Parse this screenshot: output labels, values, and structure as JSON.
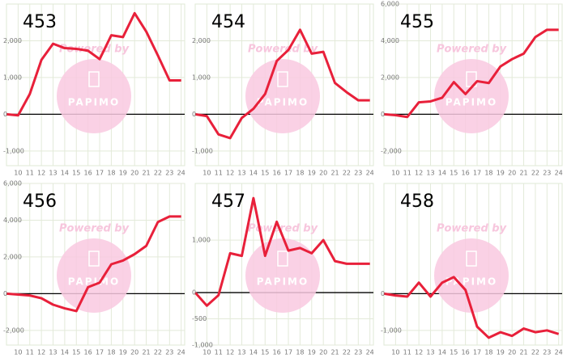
{
  "watermark": {
    "text": "Powered by",
    "logo": "PAPIMO"
  },
  "chart_data": [
    {
      "type": "line",
      "title": "453",
      "x": [
        9,
        10,
        11,
        12,
        13,
        14,
        15,
        16,
        17,
        18,
        19,
        20,
        21,
        22,
        23,
        24
      ],
      "xticks": [
        10,
        11,
        12,
        13,
        14,
        15,
        16,
        17,
        18,
        19,
        20,
        21,
        22,
        23,
        24
      ],
      "xlim": [
        9,
        24.3
      ],
      "series": [
        {
          "name": "453",
          "color": "#e8203a",
          "values": [
            0,
            -30,
            550,
            1480,
            1920,
            1800,
            1780,
            1730,
            1500,
            2150,
            2100,
            2750,
            2250,
            1600,
            920,
            920
          ]
        }
      ],
      "ylim": [
        -1400,
        3000
      ],
      "yticks": [
        {
          "value": 2000,
          "label": "2,000"
        },
        {
          "value": 1000,
          "label": "1,000"
        },
        0,
        {
          "value": -1000,
          "label": "-1,000"
        }
      ],
      "grid": true
    },
    {
      "type": "line",
      "title": "454",
      "x": [
        9,
        10,
        11,
        12,
        13,
        14,
        15,
        16,
        17,
        18,
        19,
        20,
        21,
        22,
        23,
        24
      ],
      "xticks": [
        10,
        11,
        12,
        13,
        14,
        15,
        16,
        17,
        18,
        19,
        20,
        21,
        22,
        23,
        24
      ],
      "xlim": [
        9,
        24.3
      ],
      "series": [
        {
          "name": "454",
          "color": "#e8203a",
          "values": [
            0,
            -50,
            -550,
            -650,
            -100,
            150,
            550,
            1450,
            1750,
            2300,
            1650,
            1700,
            850,
            600,
            380,
            380
          ]
        }
      ],
      "ylim": [
        -1400,
        3000
      ],
      "yticks": [
        {
          "value": 2000,
          "label": "2,000"
        },
        {
          "value": 1000,
          "label": "1,000"
        },
        0,
        {
          "value": -1000,
          "label": "-1,000"
        }
      ],
      "grid": true
    },
    {
      "type": "line",
      "title": "455",
      "x": [
        9,
        10,
        11,
        12,
        13,
        14,
        15,
        16,
        17,
        18,
        19,
        20,
        21,
        22,
        23,
        24
      ],
      "xticks": [
        10,
        11,
        12,
        13,
        14,
        15,
        16,
        17,
        18,
        19,
        20,
        21,
        22,
        23,
        24
      ],
      "xlim": [
        9,
        24.3
      ],
      "series": [
        {
          "name": "455",
          "color": "#e8203a",
          "values": [
            0,
            -50,
            -150,
            650,
            700,
            900,
            1750,
            1100,
            1800,
            1700,
            2600,
            3000,
            3300,
            4200,
            4600,
            4600
          ]
        }
      ],
      "ylim": [
        -2800,
        6000
      ],
      "yticks": [
        {
          "value": 6000,
          "label": "6,000"
        },
        {
          "value": 4000,
          "label": "4,000"
        },
        {
          "value": 2000,
          "label": "2,000"
        },
        0,
        {
          "value": -2000,
          "label": "-2,000"
        }
      ],
      "grid": true
    },
    {
      "type": "line",
      "title": "456",
      "x": [
        9,
        10,
        11,
        12,
        13,
        14,
        15,
        16,
        17,
        18,
        19,
        20,
        21,
        22,
        23,
        24
      ],
      "xticks": [
        10,
        11,
        12,
        13,
        14,
        15,
        16,
        17,
        18,
        19,
        20,
        21,
        22,
        23,
        24
      ],
      "xlim": [
        9,
        24.3
      ],
      "series": [
        {
          "name": "456",
          "color": "#e8203a",
          "values": [
            0,
            -50,
            -100,
            -250,
            -600,
            -800,
            -950,
            350,
            600,
            1600,
            1800,
            2150,
            2600,
            3900,
            4200,
            4200
          ]
        }
      ],
      "ylim": [
        -2800,
        6000
      ],
      "yticks": [
        {
          "value": 6000,
          "label": "6,000"
        },
        {
          "value": 4000,
          "label": "4,000"
        },
        {
          "value": 2000,
          "label": "2,000"
        },
        0,
        {
          "value": -2000,
          "label": "-2,000"
        }
      ],
      "grid": true
    },
    {
      "type": "line",
      "title": "457",
      "x": [
        9,
        10,
        11,
        12,
        13,
        14,
        15,
        16,
        17,
        18,
        19,
        20,
        21,
        22,
        23,
        24
      ],
      "xticks": [
        10,
        11,
        12,
        13,
        14,
        15,
        16,
        17,
        18,
        19,
        20,
        21,
        22,
        23,
        24
      ],
      "xlim": [
        9,
        24.3
      ],
      "series": [
        {
          "name": "457",
          "color": "#e8203a",
          "values": [
            0,
            -250,
            -50,
            750,
            700,
            1800,
            700,
            1350,
            800,
            850,
            750,
            1000,
            600,
            550,
            550,
            550
          ]
        }
      ],
      "ylim": [
        -1000,
        2080
      ],
      "yticks": [
        {
          "value": 1000,
          "label": "1,000"
        },
        0,
        {
          "value": -500,
          "label": "-500"
        },
        {
          "value": -1000,
          "label": "-1,000"
        }
      ],
      "grid": true
    },
    {
      "type": "line",
      "title": "458",
      "x": [
        9,
        10,
        11,
        12,
        13,
        14,
        15,
        16,
        17,
        18,
        19,
        20,
        21,
        22,
        23,
        24
      ],
      "xticks": [
        10,
        11,
        12,
        13,
        14,
        15,
        16,
        17,
        18,
        19,
        20,
        21,
        22,
        23,
        24
      ],
      "xlim": [
        9,
        24.3
      ],
      "series": [
        {
          "name": "458",
          "color": "#e8203a",
          "values": [
            0,
            -50,
            -80,
            300,
            -80,
            300,
            450,
            100,
            -900,
            -1200,
            -1050,
            -1150,
            -950,
            -1050,
            -1000,
            -1100
          ]
        }
      ],
      "ylim": [
        -1400,
        3000
      ],
      "yticks": [
        0,
        {
          "value": -1000,
          "label": "-1,000"
        }
      ],
      "grid": true
    }
  ]
}
